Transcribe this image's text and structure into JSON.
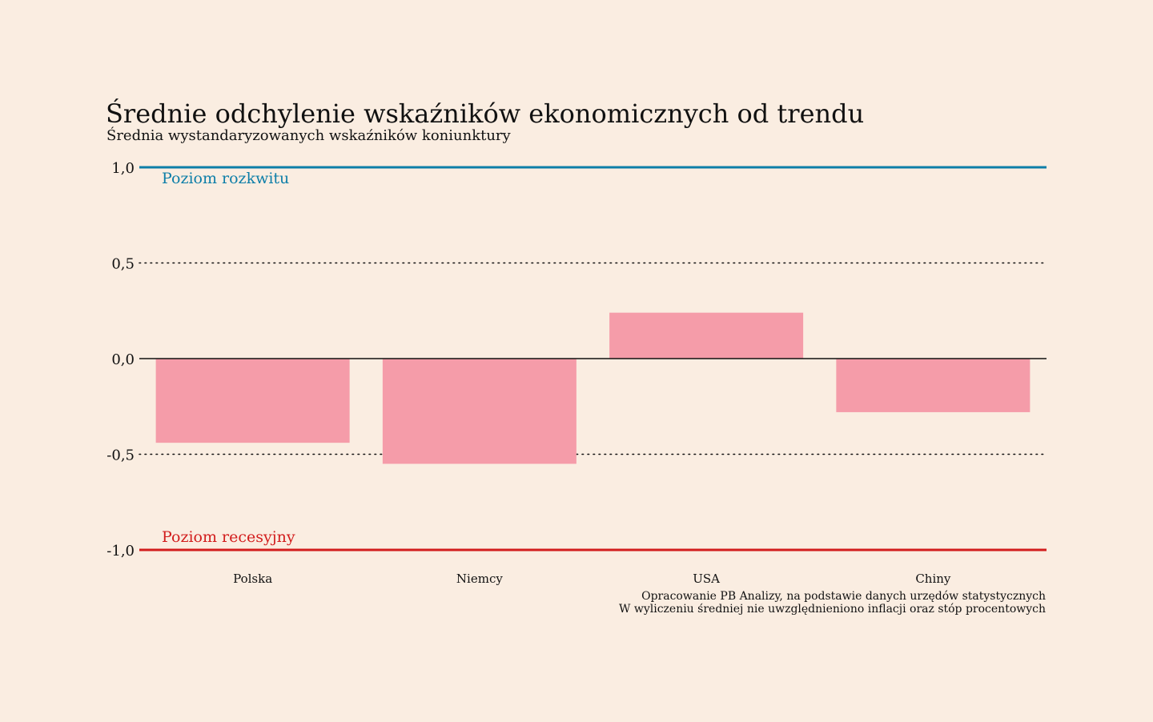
{
  "colors": {
    "background": "#faede1",
    "bar": "#f59ca9",
    "upper_line": "#0d7ea8",
    "lower_line": "#d21d1d",
    "text": "#111111"
  },
  "chart_data": {
    "type": "bar",
    "title": "Średnie odchylenie wskaźników ekonomicznych od trendu",
    "subtitle": "Średnia wystandaryzowanych wskaźników koniunktury",
    "categories": [
      "Polska",
      "Niemcy",
      "USA",
      "Chiny"
    ],
    "values": [
      -0.44,
      -0.55,
      0.24,
      -0.28
    ],
    "ylim": [
      -1.0,
      1.0
    ],
    "yticks": [
      1.0,
      0.5,
      0.0,
      -0.5,
      -1.0
    ],
    "ytick_labels": [
      "1,0",
      "0,5",
      "0,0",
      "-0,5",
      "-1,0"
    ],
    "grid": "dotted at 0.5 and -0.5",
    "reference_lines": [
      {
        "value": 1.0,
        "label": "Poziom rozkwitu",
        "color": "#0d7ea8"
      },
      {
        "value": -1.0,
        "label": "Poziom recesyjny",
        "color": "#d21d1d"
      }
    ],
    "source_lines": [
      "Opracowanie PB Analizy, na podstawie danych urzędów statystycznych",
      "W wyliczeniu średniej nie uwzględnieniono inflacji oraz stóp procentowych"
    ]
  }
}
